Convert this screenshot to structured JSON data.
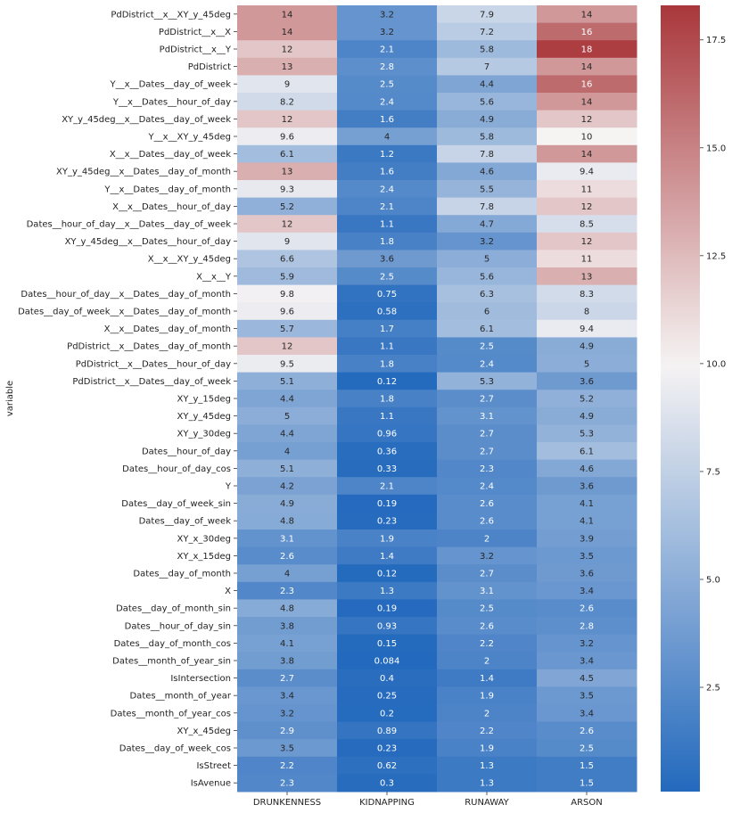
{
  "chart_data": {
    "type": "heatmap",
    "ylabel": "variable",
    "columns": [
      "DRUNKENNESS",
      "KIDNAPPING",
      "RUNAWAY",
      "ARSON"
    ],
    "rows": [
      "PdDistrict__x__XY_y_45deg",
      "PdDistrict__x__X",
      "PdDistrict__x__Y",
      "PdDistrict",
      "Y__x__Dates__day_of_week",
      "Y__x__Dates__hour_of_day",
      "XY_y_45deg__x__Dates__day_of_week",
      "Y__x__XY_y_45deg",
      "X__x__Dates__day_of_week",
      "XY_y_45deg__x__Dates__day_of_month",
      "Y__x__Dates__day_of_month",
      "X__x__Dates__hour_of_day",
      "Dates__hour_of_day__x__Dates__day_of_week",
      "XY_y_45deg__x__Dates__hour_of_day",
      "X__x__XY_y_45deg",
      "X__x__Y",
      "Dates__hour_of_day__x__Dates__day_of_month",
      "Dates__day_of_week__x__Dates__day_of_month",
      "X__x__Dates__day_of_month",
      "PdDistrict__x__Dates__day_of_month",
      "PdDistrict__x__Dates__hour_of_day",
      "PdDistrict__x__Dates__day_of_week",
      "XY_y_15deg",
      "XY_y_45deg",
      "XY_y_30deg",
      "Dates__hour_of_day",
      "Dates__hour_of_day_cos",
      "Y",
      "Dates__day_of_week_sin",
      "Dates__day_of_week",
      "XY_x_30deg",
      "XY_x_15deg",
      "Dates__day_of_month",
      "X",
      "Dates__day_of_month_sin",
      "Dates__hour_of_day_sin",
      "Dates__day_of_month_cos",
      "Dates__month_of_year_sin",
      "IsIntersection",
      "Dates__month_of_year",
      "Dates__month_of_year_cos",
      "XY_x_45deg",
      "Dates__day_of_week_cos",
      "IsStreet",
      "IsAvenue"
    ],
    "values": [
      [
        14,
        3.2,
        7.9,
        14
      ],
      [
        14,
        3.2,
        7.2,
        16
      ],
      [
        12,
        2.1,
        5.8,
        18
      ],
      [
        13,
        2.8,
        7,
        14
      ],
      [
        9,
        2.5,
        4.4,
        16
      ],
      [
        8.2,
        2.4,
        5.6,
        14
      ],
      [
        12,
        1.6,
        4.9,
        12
      ],
      [
        9.6,
        4,
        5.8,
        10
      ],
      [
        6.1,
        1.2,
        7.8,
        14
      ],
      [
        13,
        1.6,
        4.6,
        9.4
      ],
      [
        9.3,
        2.4,
        5.5,
        11
      ],
      [
        5.2,
        2.1,
        7.8,
        12
      ],
      [
        12,
        1.1,
        4.7,
        8.5
      ],
      [
        9,
        1.8,
        3.2,
        12
      ],
      [
        6.6,
        3.6,
        5,
        11
      ],
      [
        5.9,
        2.5,
        5.6,
        13
      ],
      [
        9.8,
        0.75,
        6.3,
        8.3
      ],
      [
        9.6,
        0.58,
        6,
        8
      ],
      [
        5.7,
        1.7,
        6.1,
        9.4
      ],
      [
        12,
        1.1,
        2.5,
        4.9
      ],
      [
        9.5,
        1.8,
        2.4,
        5
      ],
      [
        5.1,
        0.12,
        5.3,
        3.6
      ],
      [
        4.4,
        1.8,
        2.7,
        5.2
      ],
      [
        5,
        1.1,
        3.1,
        4.9
      ],
      [
        4.4,
        0.96,
        2.7,
        5.3
      ],
      [
        4,
        0.36,
        2.7,
        6.1
      ],
      [
        5.1,
        0.33,
        2.3,
        4.6
      ],
      [
        4.2,
        2.1,
        2.4,
        3.6
      ],
      [
        4.9,
        0.19,
        2.6,
        4.1
      ],
      [
        4.8,
        0.23,
        2.6,
        4.1
      ],
      [
        3.1,
        1.9,
        2,
        3.9
      ],
      [
        2.6,
        1.4,
        3.2,
        3.5
      ],
      [
        4,
        0.12,
        2.7,
        3.6
      ],
      [
        2.3,
        1.3,
        3.1,
        3.4
      ],
      [
        4.8,
        0.19,
        2.5,
        2.6
      ],
      [
        3.8,
        0.93,
        2.6,
        2.8
      ],
      [
        4.1,
        0.15,
        2.2,
        3.2
      ],
      [
        3.8,
        0.084,
        2,
        3.4
      ],
      [
        2.7,
        0.4,
        1.4,
        4.5
      ],
      [
        3.4,
        0.25,
        1.9,
        3.5
      ],
      [
        3.2,
        0.2,
        2,
        3.4
      ],
      [
        2.9,
        0.89,
        2.2,
        2.6
      ],
      [
        3.5,
        0.23,
        1.9,
        2.5
      ],
      [
        2.2,
        0.62,
        1.3,
        1.5
      ],
      [
        2.3,
        0.3,
        1.3,
        1.5
      ]
    ],
    "colorbar": {
      "vmin": 0.084,
      "vmax": 18.3,
      "center": 10,
      "ticks": [
        2.5,
        5.0,
        7.5,
        10.0,
        12.5,
        15.0,
        17.5
      ],
      "tick_labels": [
        "2.5",
        "5.0",
        "7.5",
        "10.0",
        "12.5",
        "15.0",
        "17.5"
      ],
      "colormap": "vlag",
      "low_color": "#2369bd",
      "mid_color": "#f6f3f3",
      "high_color": "#a9373b"
    }
  }
}
